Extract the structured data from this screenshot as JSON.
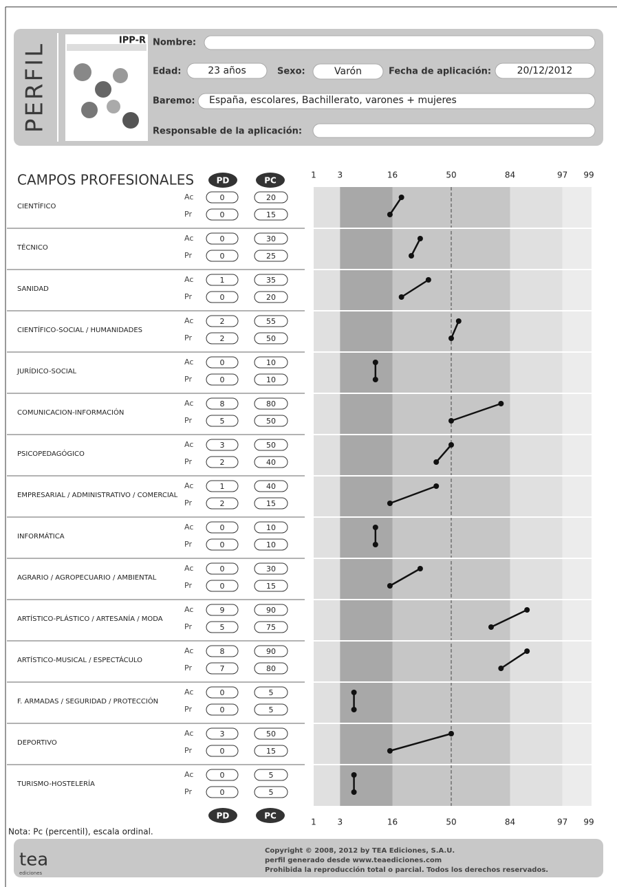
{
  "header": {
    "section": "PERFIL",
    "test": "IPP-R",
    "name_label": "Nombre:",
    "age_label": "Edad:",
    "age": "23 años",
    "sex_label": "Sexo:",
    "sex": "Varón",
    "date_label": "Fecha de aplicación:",
    "date": "20/12/2012",
    "norm_label": "Baremo:",
    "norm": "España, escolares, Bachillerato, varones + mujeres",
    "examiner_label": "Responsable de la aplicación:"
  },
  "chart_data": {
    "type": "profile",
    "title": "CAMPOS PROFESIONALES",
    "columns": [
      "PD",
      "PC"
    ],
    "categories": [
      "CIENTÍFICO",
      "TÉCNICO",
      "SANIDAD",
      "CIENTÍFICO-SOCIAL / HUMANIDADES",
      "JURÍDICO-SOCIAL",
      "COMUNICACION-INFORMACIÓN",
      "PSICOPEDAGÓGICO",
      "EMPRESARIAL / ADMINISTRATIVO / COMERCIAL",
      "INFORMÁTICA",
      "AGRARIO / AGROPECUARIO / AMBIENTAL",
      "ARTÍSTICO-PLÁSTICO / ARTESANÍA / MODA",
      "ARTÍSTICO-MUSICAL / ESPECTÁCULO",
      "F. ARMADAS / SEGURIDAD / PROTECCIÓN",
      "DEPORTIVO",
      "TURISMO-HOSTELERÍA"
    ],
    "series": [
      {
        "name": "Ac",
        "pd": [
          0,
          0,
          1,
          2,
          0,
          8,
          3,
          1,
          0,
          0,
          9,
          8,
          0,
          3,
          0
        ],
        "values": [
          20,
          30,
          35,
          55,
          10,
          80,
          50,
          40,
          10,
          30,
          90,
          90,
          5,
          50,
          5
        ]
      },
      {
        "name": "Pr",
        "pd": [
          0,
          0,
          0,
          2,
          0,
          5,
          2,
          2,
          0,
          0,
          5,
          7,
          0,
          0,
          0
        ],
        "values": [
          15,
          25,
          20,
          50,
          10,
          50,
          40,
          15,
          10,
          15,
          75,
          80,
          5,
          15,
          5
        ]
      }
    ],
    "xscale": "normal",
    "xlim": [
      1,
      99
    ],
    "xticks": [
      1,
      3,
      16,
      50,
      84,
      97,
      99
    ],
    "reference_line": 50,
    "color": "#111111"
  },
  "footer": {
    "note": "Nota: Pc (percentil), escala ordinal.",
    "logo": "tea",
    "logo_sub": "ediciones",
    "copyright": [
      "Copyright © 2008, 2012 by TEA Ediciones, S.A.U.",
      "perfil generado desde www.teaediciones.com",
      "Prohibida la reproducción total o parcial. Todos los derechos reservados."
    ]
  }
}
